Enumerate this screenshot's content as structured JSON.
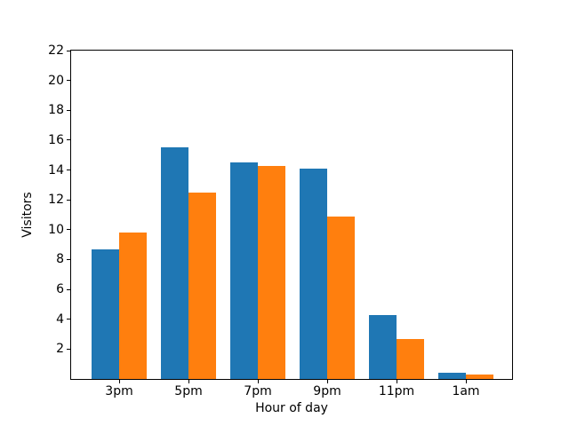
{
  "chart_data": {
    "type": "bar",
    "title": "",
    "xlabel": "Hour of day",
    "ylabel": "Visitors",
    "categories": [
      "3pm",
      "5pm",
      "7pm",
      "9pm",
      "11pm",
      "1am"
    ],
    "series": [
      {
        "name": "blue-series",
        "color": "#1f77b4",
        "values": [
          8.7,
          15.5,
          14.5,
          14.1,
          4.3,
          0.4
        ]
      },
      {
        "name": "orange-series",
        "color": "#ff7f0e",
        "values": [
          9.8,
          12.5,
          14.3,
          10.9,
          2.7,
          0.3
        ]
      }
    ],
    "ylim": [
      0,
      22
    ],
    "yticks": [
      2,
      4,
      6,
      8,
      10,
      12,
      14,
      16,
      18,
      20,
      22
    ],
    "grid": false,
    "legend_position": "none",
    "bar_group_width": 0.8,
    "background_color": "#ffffff",
    "spine_color": "#000000"
  }
}
